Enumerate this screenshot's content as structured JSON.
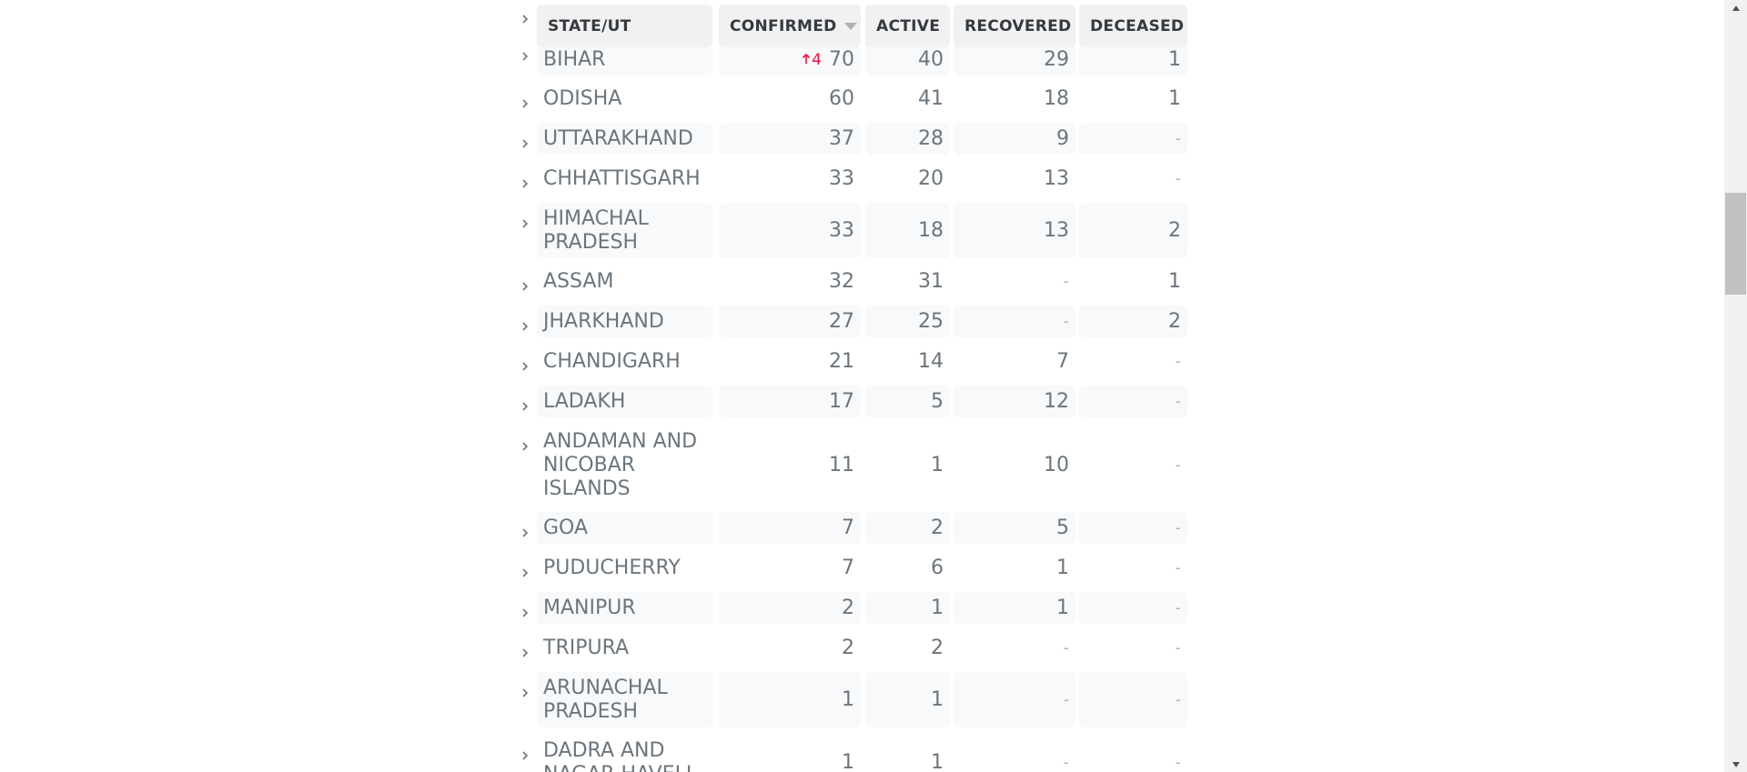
{
  "table": {
    "headers": {
      "state": "STATE/UT",
      "confirmed": "CONFIRMED",
      "active": "ACTIVE",
      "recovered": "RECOVERED",
      "deceased": "DECEASED"
    },
    "sort_column": "confirmed",
    "sort_direction": "descending",
    "rows": [
      {
        "state": "BIHAR",
        "confirmed": "70",
        "confirmed_delta": "4",
        "active": "40",
        "recovered": "29",
        "deceased": "1"
      },
      {
        "state": "ODISHA",
        "confirmed": "60",
        "active": "41",
        "recovered": "18",
        "deceased": "1"
      },
      {
        "state": "UTTARAKHAND",
        "confirmed": "37",
        "active": "28",
        "recovered": "9",
        "deceased": "-"
      },
      {
        "state": "CHHATTISGARH",
        "confirmed": "33",
        "active": "20",
        "recovered": "13",
        "deceased": "-"
      },
      {
        "state": "HIMACHAL PRADESH",
        "confirmed": "33",
        "active": "18",
        "recovered": "13",
        "deceased": "2"
      },
      {
        "state": "ASSAM",
        "confirmed": "32",
        "active": "31",
        "recovered": "-",
        "deceased": "1"
      },
      {
        "state": "JHARKHAND",
        "confirmed": "27",
        "active": "25",
        "recovered": "-",
        "deceased": "2"
      },
      {
        "state": "CHANDIGARH",
        "confirmed": "21",
        "active": "14",
        "recovered": "7",
        "deceased": "-"
      },
      {
        "state": "LADAKH",
        "confirmed": "17",
        "active": "5",
        "recovered": "12",
        "deceased": "-"
      },
      {
        "state": "ANDAMAN AND NICOBAR ISLANDS",
        "confirmed": "11",
        "active": "1",
        "recovered": "10",
        "deceased": "-"
      },
      {
        "state": "GOA",
        "confirmed": "7",
        "active": "2",
        "recovered": "5",
        "deceased": "-"
      },
      {
        "state": "PUDUCHERRY",
        "confirmed": "7",
        "active": "6",
        "recovered": "1",
        "deceased": "-"
      },
      {
        "state": "MANIPUR",
        "confirmed": "2",
        "active": "1",
        "recovered": "1",
        "deceased": "-"
      },
      {
        "state": "TRIPURA",
        "confirmed": "2",
        "active": "2",
        "recovered": "-",
        "deceased": "-"
      },
      {
        "state": "ARUNACHAL PRADESH",
        "confirmed": "1",
        "active": "1",
        "recovered": "-",
        "deceased": "-"
      },
      {
        "state": "DADRA AND NAGAR HAVELI",
        "confirmed": "1",
        "active": "1",
        "recovered": "-",
        "deceased": "-"
      }
    ]
  },
  "colors": {
    "delta_confirmed": "#ff073a",
    "text": "#6c757d",
    "header_text": "#343a40",
    "row_shade": "#f8f9fa",
    "header_bg": "#f1f1f1"
  },
  "icons": {
    "expand": "chevron-right-icon",
    "sort": "sort-down-triangle-icon",
    "delta": "arrow-up-icon"
  }
}
